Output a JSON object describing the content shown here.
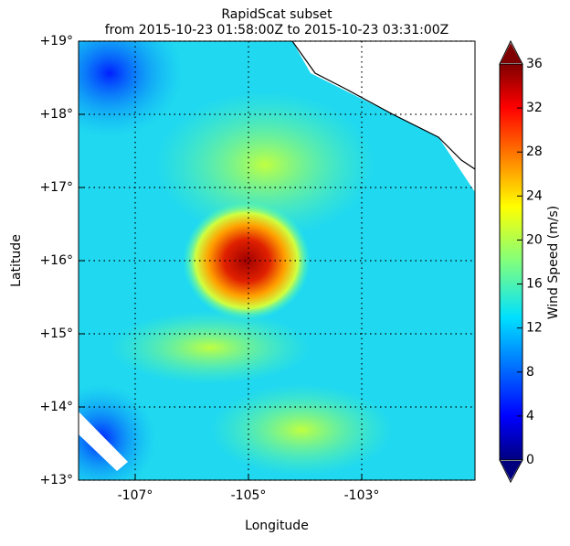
{
  "chart_data": {
    "type": "map",
    "title": "RapidScat subset",
    "subtitle": "from 2015-10-23 01:58:00Z to 2015-10-23 03:31:00Z",
    "xlabel": "Longitude",
    "ylabel": "Latitude",
    "xlim": [
      -108,
      -101
    ],
    "ylim": [
      13,
      19
    ],
    "xticks": [
      {
        "value": -107,
        "label": "-107°"
      },
      {
        "value": -105,
        "label": "-105°"
      },
      {
        "value": -103,
        "label": "-103°"
      }
    ],
    "yticks": [
      {
        "value": 13,
        "label": "+13°"
      },
      {
        "value": 14,
        "label": "+14°"
      },
      {
        "value": 15,
        "label": "+15°"
      },
      {
        "value": 16,
        "label": "+16°"
      },
      {
        "value": 17,
        "label": "+17°"
      },
      {
        "value": 18,
        "label": "+18°"
      },
      {
        "value": 19,
        "label": "+19°"
      }
    ],
    "grid": true,
    "colorbar": {
      "label": "Wind Speed (m/s)",
      "lim": [
        0,
        36
      ],
      "ticks": [
        0,
        4,
        8,
        12,
        16,
        20,
        24,
        28,
        32,
        36
      ]
    }
  }
}
